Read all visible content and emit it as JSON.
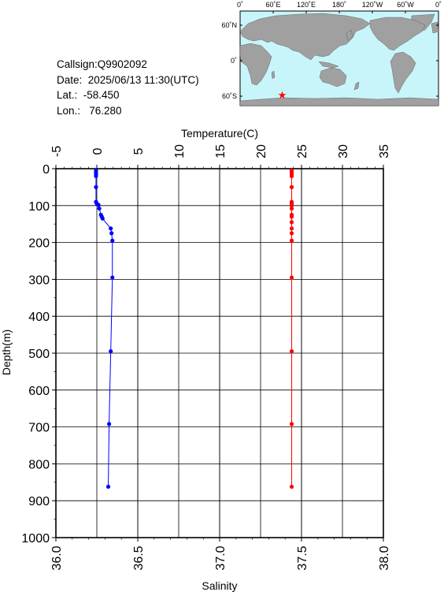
{
  "info": {
    "callsign": "Callsign:Q9902092",
    "date": "Date:  2025/06/13 11:30(UTC)",
    "lat": "Lat.:  -58.450",
    "lon": "Lon.:   76.280"
  },
  "map": {
    "top_labels": [
      "0˚",
      "60˚E",
      "120˚E",
      "180˚",
      "120˚W",
      "60˚W",
      "0˚"
    ],
    "lat_labels": [
      "60˚N",
      "0˚",
      "60˚S"
    ],
    "station_lon": 76.28,
    "station_lat": -58.45,
    "marker_color": "#ff0000",
    "ocean_color": "#c8f5fa",
    "land_color": "#a0a0a0"
  },
  "chart_data": {
    "type": "line",
    "top_axis_label": "Temperature(C)",
    "bottom_axis_label": "Salinity",
    "ylabel": "Depth(m)",
    "ylim": [
      0,
      1000
    ],
    "y_inverted": true,
    "temperature_lim": [
      -5,
      35
    ],
    "salinity_lim": [
      36.0,
      38.0
    ],
    "temperature_ticks": [
      "-5",
      "0",
      "5",
      "10",
      "15",
      "20",
      "25",
      "30",
      "35"
    ],
    "salinity_ticks": [
      "36.0",
      "36.5",
      "37.0",
      "37.5",
      "38.0"
    ],
    "depth_ticks": [
      "0",
      "100",
      "200",
      "300",
      "400",
      "500",
      "600",
      "700",
      "800",
      "900",
      "1000"
    ],
    "grid": true,
    "series": [
      {
        "color": "#0000ff",
        "axis": "temperature",
        "points": [
          [
            -0.1,
            5
          ],
          [
            -0.1,
            10
          ],
          [
            -0.1,
            15
          ],
          [
            -0.1,
            20
          ],
          [
            -0.1,
            50
          ],
          [
            -0.1,
            90
          ],
          [
            0.0,
            95
          ],
          [
            0.2,
            98
          ],
          [
            0.3,
            108
          ],
          [
            0.5,
            125
          ],
          [
            0.6,
            130
          ],
          [
            0.7,
            135
          ],
          [
            1.7,
            162
          ],
          [
            1.8,
            175
          ],
          [
            1.9,
            195
          ],
          [
            1.9,
            295
          ],
          [
            1.7,
            495
          ],
          [
            1.5,
            692
          ],
          [
            1.4,
            862
          ]
        ]
      },
      {
        "color": "#ff0000",
        "axis": "salinity",
        "points": [
          [
            37.44,
            5
          ],
          [
            37.44,
            10
          ],
          [
            37.44,
            15
          ],
          [
            37.44,
            20
          ],
          [
            37.44,
            50
          ],
          [
            37.44,
            90
          ],
          [
            37.44,
            95
          ],
          [
            37.44,
            100
          ],
          [
            37.44,
            108
          ],
          [
            37.44,
            125
          ],
          [
            37.44,
            130
          ],
          [
            37.44,
            145
          ],
          [
            37.44,
            162
          ],
          [
            37.44,
            175
          ],
          [
            37.44,
            195
          ],
          [
            37.44,
            295
          ],
          [
            37.44,
            495
          ],
          [
            37.44,
            692
          ],
          [
            37.44,
            862
          ]
        ]
      }
    ]
  }
}
